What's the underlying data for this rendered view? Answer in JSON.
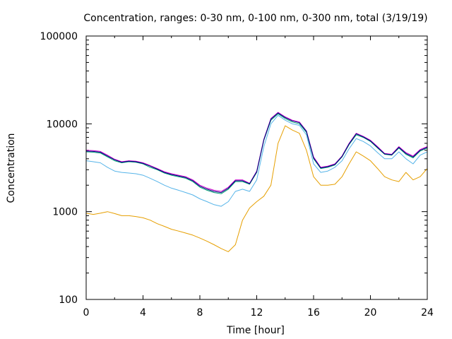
{
  "chart_data": {
    "type": "line",
    "title": "Concentration, ranges: 0-30 nm, 0-100 nm, 0-300 nm, total (3/19/19)",
    "xlabel": "Time [hour]",
    "ylabel": "Concentration",
    "xlim": [
      0,
      24
    ],
    "ylim": [
      100,
      100000
    ],
    "yscale": "log",
    "x_ticks": [
      "0",
      "4",
      "8",
      "12",
      "16",
      "20",
      "24"
    ],
    "y_ticks": [
      "100",
      "1000",
      "10000",
      "100000"
    ],
    "x": [
      0,
      0.5,
      1,
      1.5,
      2,
      2.5,
      3,
      3.5,
      4,
      4.5,
      5,
      5.5,
      6,
      6.5,
      7,
      7.5,
      8,
      8.5,
      9,
      9.5,
      10,
      10.5,
      11,
      11.5,
      12,
      12.5,
      13,
      13.5,
      14,
      14.5,
      15,
      15.5,
      16,
      16.5,
      17,
      17.5,
      18,
      18.5,
      19,
      19.5,
      20,
      20.5,
      21,
      21.5,
      22,
      22.5,
      23,
      23.5,
      24
    ],
    "series": [
      {
        "color": "#e69f00",
        "values": [
          960,
          930,
          960,
          1000,
          950,
          900,
          900,
          880,
          850,
          800,
          730,
          680,
          630,
          600,
          570,
          540,
          500,
          460,
          420,
          380,
          350,
          420,
          800,
          1100,
          1300,
          1500,
          2000,
          6000,
          9500,
          8500,
          7800,
          5000,
          2500,
          2000,
          2000,
          2050,
          2500,
          3500,
          4800,
          4300,
          3800,
          3100,
          2500,
          2300,
          2200,
          2800,
          2300,
          2500,
          3100
        ]
      },
      {
        "color": "#56b4e9",
        "values": [
          3800,
          3700,
          3600,
          3200,
          2900,
          2800,
          2750,
          2700,
          2600,
          2400,
          2200,
          2000,
          1850,
          1750,
          1650,
          1550,
          1400,
          1300,
          1200,
          1150,
          1300,
          1700,
          1800,
          1700,
          2300,
          5500,
          10000,
          12500,
          11000,
          10000,
          9600,
          7500,
          3500,
          2800,
          2900,
          3200,
          3800,
          5200,
          6800,
          6300,
          5600,
          4700,
          4000,
          4000,
          4800,
          4000,
          3500,
          4400,
          4800
        ]
      },
      {
        "color": "#009e73",
        "values": [
          4800,
          4750,
          4650,
          4200,
          3800,
          3600,
          3700,
          3650,
          3500,
          3200,
          3000,
          2750,
          2600,
          2500,
          2400,
          2200,
          1900,
          1750,
          1650,
          1600,
          1800,
          2200,
          2200,
          2050,
          2800,
          6500,
          11000,
          13000,
          11500,
          10500,
          10000,
          8000,
          4000,
          3100,
          3200,
          3400,
          4200,
          5800,
          7500,
          7000,
          6300,
          5300,
          4500,
          4400,
          5300,
          4500,
          4100,
          4900,
          5300
        ]
      },
      {
        "color": "#cc00cc",
        "values": [
          5000,
          4950,
          4850,
          4400,
          3950,
          3700,
          3800,
          3750,
          3600,
          3350,
          3100,
          2850,
          2700,
          2600,
          2500,
          2300,
          2000,
          1850,
          1750,
          1700,
          1900,
          2300,
          2300,
          2100,
          2900,
          6700,
          11500,
          13500,
          12000,
          11000,
          10500,
          8300,
          4200,
          3200,
          3300,
          3500,
          4300,
          6000,
          7800,
          7200,
          6500,
          5500,
          4600,
          4500,
          5500,
          4700,
          4300,
          5100,
          5500
        ]
      },
      {
        "color": "#000080",
        "values": [
          4900,
          4850,
          4750,
          4300,
          3900,
          3650,
          3750,
          3700,
          3550,
          3300,
          3050,
          2800,
          2650,
          2550,
          2450,
          2250,
          1950,
          1800,
          1700,
          1650,
          1850,
          2250,
          2250,
          2080,
          2850,
          6600,
          11300,
          13300,
          11800,
          10800,
          10300,
          8200,
          4100,
          3150,
          3250,
          3450,
          4250,
          5900,
          7700,
          7100,
          6400,
          5400,
          4550,
          4450,
          5400,
          4600,
          4200,
          5000,
          5400
        ]
      }
    ]
  }
}
